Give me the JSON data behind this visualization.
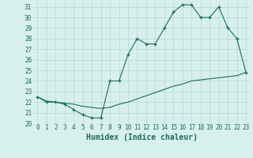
{
  "xlabel": "Humidex (Indice chaleur)",
  "bg_color": "#d8f0ec",
  "grid_color": "#b8dcd4",
  "line_color": "#1a6b5a",
  "xlim": [
    -0.5,
    23.5
  ],
  "ylim": [
    20,
    31.5
  ],
  "xticks": [
    0,
    1,
    2,
    3,
    4,
    5,
    6,
    7,
    8,
    9,
    10,
    11,
    12,
    13,
    14,
    15,
    16,
    17,
    18,
    19,
    20,
    21,
    22,
    23
  ],
  "yticks": [
    20,
    21,
    22,
    23,
    24,
    25,
    26,
    27,
    28,
    29,
    30,
    31
  ],
  "line1_x": [
    0,
    1,
    2,
    3,
    4,
    5,
    6,
    7,
    8,
    9,
    10,
    11,
    12,
    13,
    14,
    15,
    16,
    17,
    18,
    19,
    20,
    21,
    22,
    23
  ],
  "line1_y": [
    22.5,
    22.0,
    22.0,
    21.8,
    21.3,
    20.8,
    20.5,
    20.5,
    24.0,
    24.0,
    26.5,
    28.0,
    27.5,
    27.5,
    29.0,
    30.5,
    31.2,
    31.2,
    30.0,
    30.0,
    31.0,
    29.0,
    28.0,
    24.8
  ],
  "line2_x": [
    0,
    1,
    2,
    3,
    4,
    5,
    6,
    7,
    8,
    9,
    10,
    11,
    12,
    13,
    14,
    15,
    16,
    17,
    18,
    19,
    20,
    21,
    22,
    23
  ],
  "line2_y": [
    22.5,
    22.1,
    22.0,
    21.9,
    21.8,
    21.6,
    21.5,
    21.4,
    21.5,
    21.8,
    22.0,
    22.3,
    22.6,
    22.9,
    23.2,
    23.5,
    23.7,
    24.0,
    24.1,
    24.2,
    24.3,
    24.4,
    24.5,
    24.8
  ],
  "label_fontsize": 7,
  "tick_fontsize": 5.5
}
